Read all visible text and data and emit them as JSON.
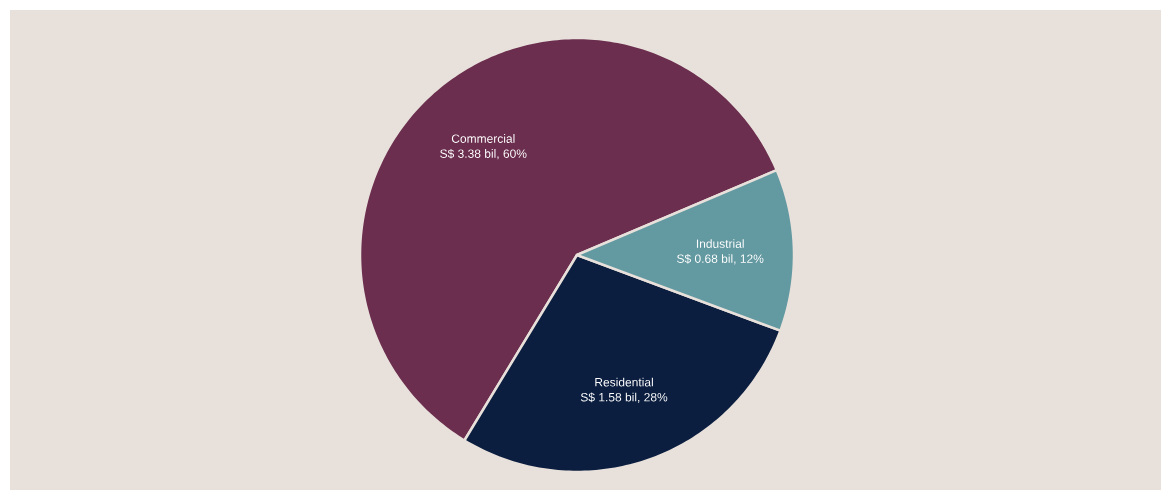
{
  "chart_data": {
    "type": "pie",
    "categories": [
      "Commercial",
      "Residential",
      "Industrial"
    ],
    "values": [
      3.38,
      1.58,
      0.68
    ],
    "colors": [
      "#6b2e4e",
      "#0b1e3f",
      "#6399a1"
    ],
    "value_labels": [
      "S$ 3.38 bil, 60%",
      "S$ 1.58 bil, 28%",
      "S$ 0.68 bil, 12%"
    ]
  }
}
